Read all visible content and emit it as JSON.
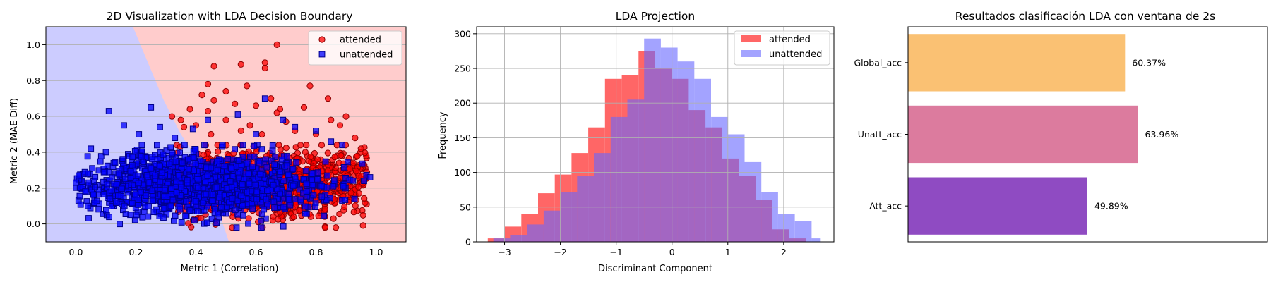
{
  "chart_data": [
    {
      "type": "scatter",
      "title": "2D Visualization with LDA Decision Boundary",
      "xlabel": "Metric 1 (Correlation)",
      "ylabel": "Metric 2 (MAE Diff)",
      "xlim": [
        -0.1,
        1.1
      ],
      "ylim": [
        -0.1,
        1.1
      ],
      "xticks": [
        "0.0",
        "0.2",
        "0.4",
        "0.6",
        "0.8",
        "1.0"
      ],
      "yticks": [
        "0.0",
        "0.2",
        "0.4",
        "0.6",
        "0.8",
        "1.0"
      ],
      "grid": true,
      "legend": "top-right",
      "decision_boundary": {
        "points": [
          [
            0.19,
            1.1
          ],
          [
            0.24,
            0.9
          ],
          [
            0.29,
            0.7
          ],
          [
            0.35,
            0.5
          ],
          [
            0.43,
            0.3
          ],
          [
            0.47,
            0.1
          ],
          [
            0.51,
            -0.1
          ]
        ],
        "left_color": "#ccccff",
        "right_color": "#ffcccc"
      },
      "series": [
        {
          "name": "attended",
          "marker": "circle",
          "color": "#ff0000",
          "edge": "#8b0000",
          "points": [
            [
              0.67,
              1.0
            ],
            [
              0.55,
              0.89
            ],
            [
              0.63,
              0.9
            ],
            [
              0.63,
              0.87
            ],
            [
              0.46,
              0.88
            ],
            [
              0.44,
              0.78
            ],
            [
              0.5,
              0.74
            ],
            [
              0.57,
              0.77
            ],
            [
              0.65,
              0.7
            ],
            [
              0.42,
              0.72
            ],
            [
              0.46,
              0.69
            ],
            [
              0.53,
              0.67
            ],
            [
              0.6,
              0.66
            ],
            [
              0.68,
              0.64
            ],
            [
              0.76,
              0.65
            ],
            [
              0.84,
              0.7
            ],
            [
              0.78,
              0.77
            ],
            [
              0.9,
              0.6
            ],
            [
              0.85,
              0.58
            ],
            [
              0.38,
              0.64
            ],
            [
              0.44,
              0.63
            ],
            [
              0.35,
              0.58
            ],
            [
              0.32,
              0.6
            ],
            [
              0.4,
              0.55
            ],
            [
              0.5,
              0.58
            ],
            [
              0.58,
              0.55
            ],
            [
              0.7,
              0.57
            ],
            [
              0.73,
              0.52
            ],
            [
              0.8,
              0.5
            ],
            [
              0.88,
              0.55
            ],
            [
              0.93,
              0.48
            ],
            [
              0.95,
              0.42
            ],
            [
              0.62,
              0.5
            ],
            [
              0.55,
              0.52
            ],
            [
              0.45,
              0.5
            ],
            [
              0.36,
              0.54
            ],
            [
              0.67,
              0.62
            ],
            [
              0.87,
              0.44
            ]
          ],
          "cloud": {
            "count": 1300,
            "x_range": [
              0.33,
              0.97
            ],
            "x_center": 0.64,
            "y_center": 0.22,
            "y_spread": 0.09
          }
        },
        {
          "name": "unattended",
          "marker": "square",
          "color": "#0000ff",
          "edge": "#00008b",
          "points": [
            [
              0.11,
              0.63
            ],
            [
              0.25,
              0.65
            ],
            [
              0.16,
              0.55
            ],
            [
              0.21,
              0.5
            ],
            [
              0.28,
              0.54
            ],
            [
              0.33,
              0.48
            ],
            [
              0.39,
              0.53
            ],
            [
              0.44,
              0.58
            ],
            [
              0.54,
              0.61
            ],
            [
              0.63,
              0.7
            ],
            [
              0.69,
              0.58
            ],
            [
              0.73,
              0.54
            ],
            [
              0.8,
              0.52
            ],
            [
              0.85,
              0.46
            ],
            [
              0.6,
              0.5
            ],
            [
              0.05,
              0.42
            ],
            [
              0.1,
              0.4
            ],
            [
              0.01,
              0.27
            ],
            [
              0.04,
              0.1
            ],
            [
              0.0,
              0.23
            ],
            [
              0.98,
              0.26
            ],
            [
              0.96,
              0.24
            ]
          ],
          "cloud": {
            "count": 1400,
            "x_range": [
              0.0,
              0.98
            ],
            "x_center": 0.4,
            "y_center": 0.22,
            "y_spread": 0.085
          }
        }
      ]
    },
    {
      "type": "histogram",
      "title": "LDA Projection",
      "xlabel": "Discriminant Component",
      "ylabel": "Frequency",
      "xlim": [
        -3.5,
        2.9
      ],
      "ylim": [
        0,
        310
      ],
      "xticks": [
        "−3",
        "−2",
        "−1",
        "0",
        "1",
        "2"
      ],
      "yticks": [
        "0",
        "50",
        "100",
        "150",
        "200",
        "250",
        "300"
      ],
      "grid": true,
      "legend": "top-right",
      "series": [
        {
          "name": "attended",
          "color": "#ff6666",
          "bins": [
            [
              -3.3,
              -3.0,
              5
            ],
            [
              -3.0,
              -2.7,
              22
            ],
            [
              -2.7,
              -2.4,
              40
            ],
            [
              -2.4,
              -2.1,
              70
            ],
            [
              -2.1,
              -1.8,
              97
            ],
            [
              -1.8,
              -1.5,
              128
            ],
            [
              -1.5,
              -1.2,
              165
            ],
            [
              -1.2,
              -0.9,
              235
            ],
            [
              -0.9,
              -0.6,
              240
            ],
            [
              -0.6,
              -0.3,
              275
            ],
            [
              -0.3,
              0.0,
              250
            ],
            [
              0.0,
              0.3,
              235
            ],
            [
              0.3,
              0.6,
              190
            ],
            [
              0.6,
              0.9,
              165
            ],
            [
              0.9,
              1.2,
              120
            ],
            [
              1.2,
              1.5,
              95
            ],
            [
              1.5,
              1.8,
              60
            ],
            [
              1.8,
              2.1,
              18
            ],
            [
              2.1,
              2.4,
              5
            ]
          ]
        },
        {
          "name": "unattended",
          "color": "#6666ff",
          "bins": [
            [
              -3.2,
              -2.9,
              5
            ],
            [
              -2.9,
              -2.6,
              10
            ],
            [
              -2.6,
              -2.3,
              25
            ],
            [
              -2.3,
              -2.0,
              45
            ],
            [
              -2.0,
              -1.7,
              72
            ],
            [
              -1.7,
              -1.4,
              95
            ],
            [
              -1.4,
              -1.1,
              128
            ],
            [
              -1.1,
              -0.8,
              180
            ],
            [
              -0.8,
              -0.5,
              205
            ],
            [
              -0.5,
              -0.2,
              293
            ],
            [
              -0.2,
              0.1,
              280
            ],
            [
              0.1,
              0.4,
              260
            ],
            [
              0.4,
              0.7,
              235
            ],
            [
              0.7,
              1.0,
              180
            ],
            [
              1.0,
              1.3,
              155
            ],
            [
              1.3,
              1.6,
              115
            ],
            [
              1.6,
              1.9,
              72
            ],
            [
              1.9,
              2.2,
              40
            ],
            [
              2.2,
              2.5,
              30
            ],
            [
              2.5,
              2.65,
              5
            ]
          ]
        }
      ]
    },
    {
      "type": "bar",
      "orientation": "horizontal",
      "title": "Resultados clasificación LDA con ventana de 2s",
      "categories": [
        "Global_acc",
        "Unatt_acc",
        "Att_acc"
      ],
      "values": [
        60.37,
        63.96,
        49.89
      ],
      "labels": [
        "60.37%",
        "63.96%",
        "49.89%"
      ],
      "colors": [
        "#fac173",
        "#dc7b9e",
        "#8f4bc2"
      ],
      "xlim": [
        0,
        100
      ]
    }
  ]
}
